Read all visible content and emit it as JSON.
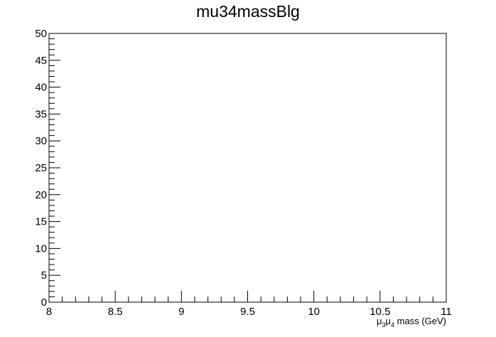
{
  "chart_data": {
    "type": "bar",
    "title": "mu34massBlg",
    "xlabel": {
      "mu_a": "μ",
      "sub_a": "3",
      "mu_b": "μ",
      "sub_b": "4",
      "rest": " mass (GeV)"
    },
    "ylabel": "",
    "xlim": [
      8,
      11
    ],
    "ylim": [
      0,
      50
    ],
    "x_major_ticks": [
      8,
      8.5,
      9,
      9.5,
      10,
      10.5,
      11
    ],
    "x_tick_labels": [
      "8",
      "8.5",
      "9",
      "9.5",
      "10",
      "10.5",
      "11"
    ],
    "x_minor_step": 0.1,
    "y_major_ticks": [
      0,
      5,
      10,
      15,
      20,
      25,
      30,
      35,
      40,
      45,
      50
    ],
    "y_tick_labels": [
      "0",
      "5",
      "10",
      "15",
      "20",
      "25",
      "30",
      "35",
      "40",
      "45",
      "50"
    ],
    "y_minor_step": 1,
    "grid": false,
    "series": [],
    "colors": {
      "axis": "#000000",
      "background": "#ffffff"
    }
  }
}
